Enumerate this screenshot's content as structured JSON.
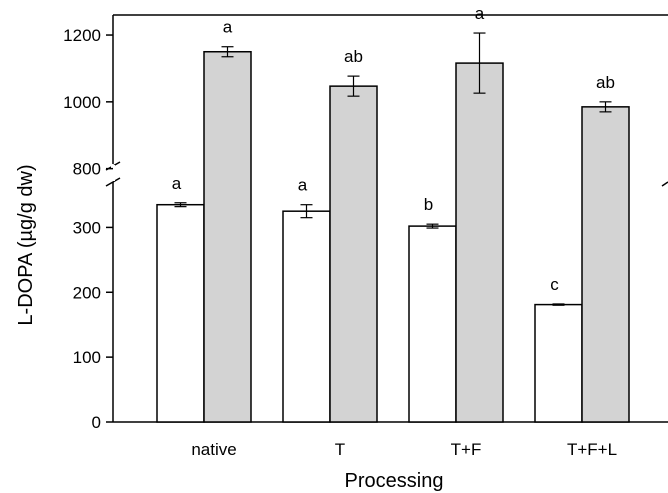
{
  "chart_data": {
    "type": "bar",
    "xlabel": "Processing",
    "ylabel": "L-DOPA (µg/g dw)",
    "categories": [
      "native",
      "T",
      "T+F",
      "T+F+L"
    ],
    "series": [
      {
        "color": "#ffffff",
        "values": [
          335,
          325,
          302,
          181
        ],
        "errors": [
          3,
          10,
          3,
          1
        ],
        "significance": [
          "a",
          "a",
          "b",
          "c"
        ]
      },
      {
        "color": "#d3d3d3",
        "values": [
          1150,
          1047,
          1116,
          985
        ],
        "errors": [
          15,
          30,
          90,
          15
        ],
        "significance": [
          "a",
          "ab",
          "a",
          "ab"
        ]
      }
    ],
    "y_axis": {
      "broken": true,
      "lower_range": [
        0,
        370
      ],
      "lower_ticks": [
        0,
        100,
        200,
        300
      ],
      "upper_range": [
        760,
        1260
      ],
      "upper_ticks": [
        800,
        1000,
        1200
      ]
    }
  }
}
